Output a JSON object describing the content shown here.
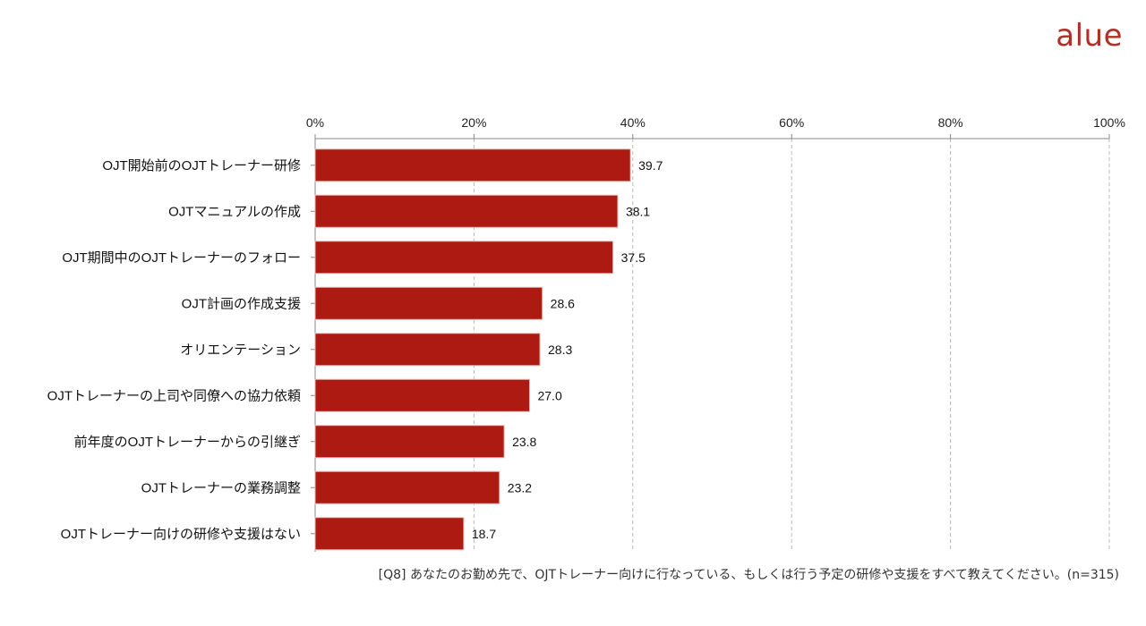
{
  "brand": {
    "logo_text": "alue",
    "accent_color": "#b03025"
  },
  "chart_data": {
    "type": "bar",
    "orientation": "horizontal",
    "categories": [
      "OJT開始前のOJTトレーナー研修",
      "OJTマニュアルの作成",
      "OJT期間中のOJTトレーナーのフォロー",
      "OJT計画の作成支援",
      "オリエンテーション",
      "OJTトレーナーの上司や同僚への協力依頼",
      "前年度のOJTトレーナーからの引継ぎ",
      "OJTトレーナーの業務調整",
      "OJTトレーナー向けの研修や支援はない"
    ],
    "values": [
      39.7,
      38.1,
      37.5,
      28.6,
      28.3,
      27.0,
      23.8,
      23.2,
      18.7
    ],
    "value_labels": [
      "39.7",
      "38.1",
      "37.5",
      "28.6",
      "28.3",
      "27.0",
      "23.8",
      "23.2",
      "18.7"
    ],
    "xlim": [
      0,
      100
    ],
    "x_ticks": [
      0,
      20,
      40,
      60,
      80,
      100
    ],
    "x_tick_labels": [
      "0%",
      "20%",
      "40%",
      "60%",
      "80%",
      "100%"
    ],
    "axis_position": "top",
    "grid": "vertical-dashed",
    "bar_color": "#ac1a12",
    "title": "",
    "xlabel": "",
    "ylabel": ""
  },
  "footnote": "[Q8] あなたのお勤め先で、OJTトレーナー向けに行なっている、もしくは行う予定の研修や支援をすべて教えてください。(n=315)"
}
